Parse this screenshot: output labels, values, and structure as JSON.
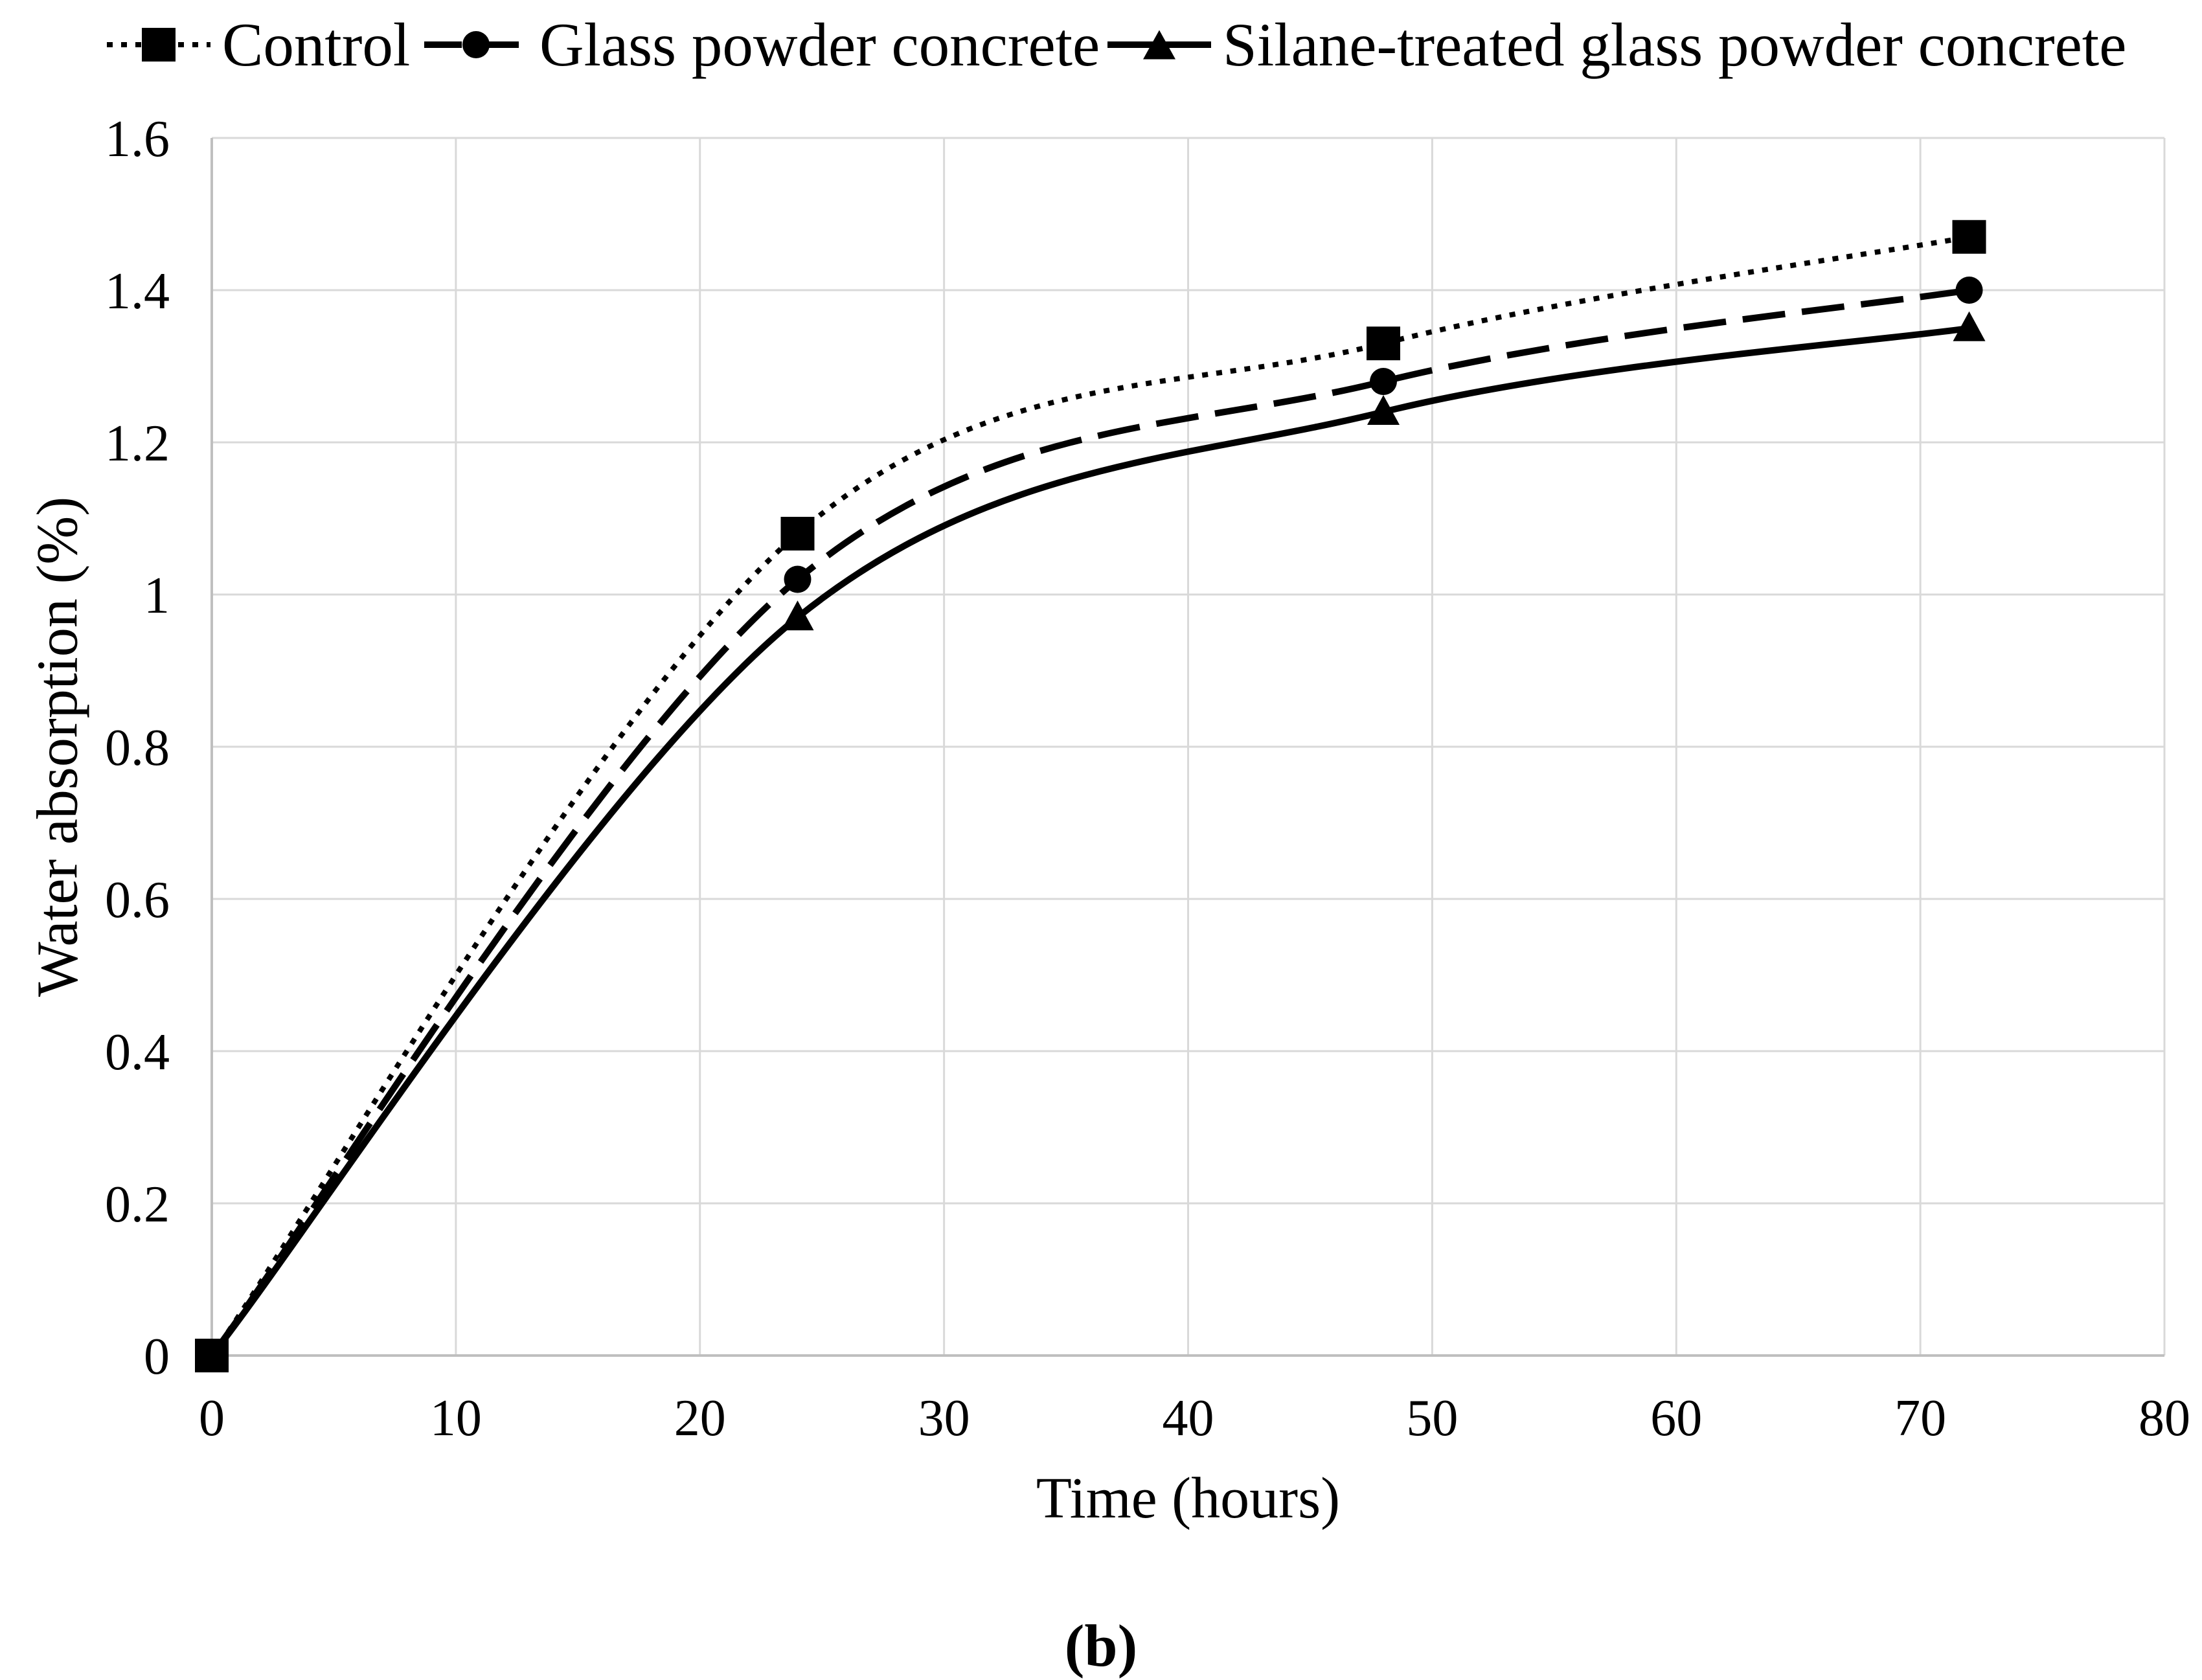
{
  "figure": {
    "caption": "(b)"
  },
  "chart_data": {
    "type": "line",
    "title": "",
    "xlabel": "Time (hours)",
    "ylabel": "Water absorption (%)",
    "x": [
      0,
      24,
      48,
      72
    ],
    "xlim": [
      0,
      80
    ],
    "ylim": [
      0,
      1.6
    ],
    "x_ticks": [
      0,
      10,
      20,
      30,
      40,
      50,
      60,
      70,
      80
    ],
    "y_ticks": [
      0,
      0.2,
      0.4,
      0.6,
      0.8,
      1,
      1.2,
      1.4,
      1.6
    ],
    "y_tick_labels": [
      "0",
      "0.2",
      "0.4",
      "0.6",
      "0.8",
      "1",
      "1.2",
      "1.4",
      "1.6"
    ],
    "grid": true,
    "legend_position": "top",
    "series": [
      {
        "name": "Control",
        "marker": "square",
        "line_style": "dotted",
        "color": "#000000",
        "values": [
          0,
          1.08,
          1.33,
          1.47
        ]
      },
      {
        "name": "Glass powder concrete",
        "marker": "circle",
        "line_style": "dashed",
        "color": "#000000",
        "values": [
          0,
          1.02,
          1.28,
          1.4
        ]
      },
      {
        "name": "Silane-treated glass powder concrete",
        "marker": "triangle",
        "line_style": "solid",
        "color": "#000000",
        "values": [
          0,
          0.97,
          1.24,
          1.35
        ]
      }
    ],
    "colors": {
      "series": "#000000",
      "gridline": "#d9d9d9",
      "axis": "#bfbfbf",
      "text": "#000000",
      "background": "#ffffff"
    }
  }
}
